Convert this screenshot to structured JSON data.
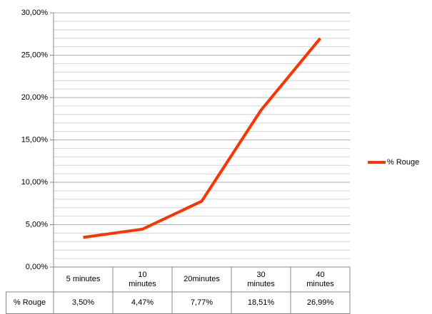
{
  "chart_data": {
    "type": "line",
    "categories": [
      "5 minutes",
      "10 minutes",
      "20minutes",
      "30 minutes",
      "40 minutes"
    ],
    "series": [
      {
        "name": "% Rouge",
        "color": "#ff3300",
        "values": [
          3.5,
          4.47,
          7.77,
          18.51,
          26.99
        ],
        "value_labels": [
          "3,50%",
          "4,47%",
          "7,77%",
          "18,51%",
          "26,99%"
        ]
      }
    ],
    "ylim": [
      0,
      30
    ],
    "yticks": [
      {
        "value": 0,
        "label": "0,00%"
      },
      {
        "value": 5,
        "label": "5,00%"
      },
      {
        "value": 10,
        "label": "10,00%"
      },
      {
        "value": 15,
        "label": "15,00%"
      },
      {
        "value": 20,
        "label": "20,00%"
      },
      {
        "value": 25,
        "label": "25,00%"
      },
      {
        "value": 30,
        "label": "30,00%"
      }
    ],
    "minor_yticks": [
      1,
      2,
      3,
      4,
      6,
      7,
      8,
      9,
      11,
      12,
      13,
      14,
      16,
      17,
      18,
      19,
      21,
      22,
      23,
      24,
      26,
      27,
      28,
      29
    ],
    "grid": true,
    "legend": "right"
  }
}
